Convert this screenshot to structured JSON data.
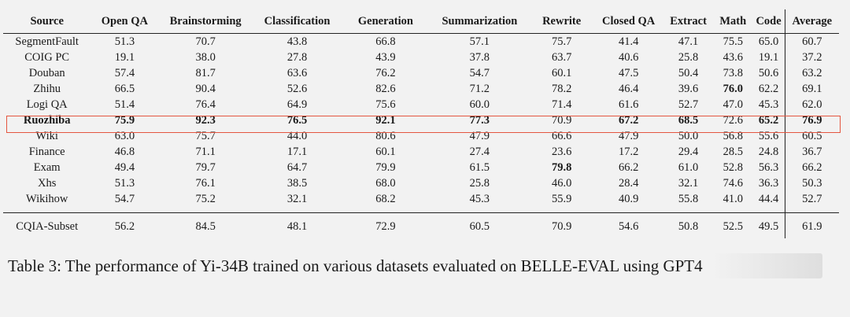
{
  "table": {
    "headers": [
      "Source",
      "Open QA",
      "Brainstorming",
      "Classification",
      "Generation",
      "Summarization",
      "Rewrite",
      "Closed QA",
      "Extract",
      "Math",
      "Code",
      "Average"
    ],
    "rows": [
      {
        "source": "SegmentFault",
        "values": [
          "51.3",
          "70.7",
          "43.8",
          "66.8",
          "57.1",
          "75.7",
          "41.4",
          "47.1",
          "75.5",
          "65.0",
          "60.7"
        ],
        "bold": []
      },
      {
        "source": "COIG PC",
        "values": [
          "19.1",
          "38.0",
          "27.8",
          "43.9",
          "37.8",
          "63.7",
          "40.6",
          "25.8",
          "43.6",
          "19.1",
          "37.2"
        ],
        "bold": []
      },
      {
        "source": "Douban",
        "values": [
          "57.4",
          "81.7",
          "63.6",
          "76.2",
          "54.7",
          "60.1",
          "47.5",
          "50.4",
          "73.8",
          "50.6",
          "63.2"
        ],
        "bold": []
      },
      {
        "source": "Zhihu",
        "values": [
          "66.5",
          "90.4",
          "52.6",
          "82.6",
          "71.2",
          "78.2",
          "46.4",
          "39.6",
          "76.0",
          "62.2",
          "69.1"
        ],
        "bold": [
          8
        ]
      },
      {
        "source": "Logi QA",
        "values": [
          "51.4",
          "76.4",
          "64.9",
          "75.6",
          "60.0",
          "71.4",
          "61.6",
          "52.7",
          "47.0",
          "45.3",
          "62.0"
        ],
        "bold": []
      },
      {
        "source": "Ruozhiba",
        "values": [
          "75.9",
          "92.3",
          "76.5",
          "92.1",
          "77.3",
          "70.9",
          "67.2",
          "68.5",
          "72.6",
          "65.2",
          "76.9"
        ],
        "bold": [
          0,
          1,
          2,
          3,
          4,
          6,
          7,
          9,
          10
        ],
        "source_bold": true
      },
      {
        "source": "Wiki",
        "values": [
          "63.0",
          "75.7",
          "44.0",
          "80.6",
          "47.9",
          "66.6",
          "47.9",
          "50.0",
          "56.8",
          "55.6",
          "60.5"
        ],
        "bold": []
      },
      {
        "source": "Finance",
        "values": [
          "46.8",
          "71.1",
          "17.1",
          "60.1",
          "27.4",
          "23.6",
          "17.2",
          "29.4",
          "28.5",
          "24.8",
          "36.7"
        ],
        "bold": []
      },
      {
        "source": "Exam",
        "values": [
          "49.4",
          "79.7",
          "64.7",
          "79.9",
          "61.5",
          "79.8",
          "66.2",
          "61.0",
          "52.8",
          "56.3",
          "66.2"
        ],
        "bold": [
          5
        ]
      },
      {
        "source": "Xhs",
        "values": [
          "51.3",
          "76.1",
          "38.5",
          "68.0",
          "25.8",
          "46.0",
          "28.4",
          "32.1",
          "74.6",
          "36.3",
          "50.3"
        ],
        "bold": []
      },
      {
        "source": "Wikihow",
        "values": [
          "54.7",
          "75.2",
          "32.1",
          "68.2",
          "45.3",
          "55.9",
          "40.9",
          "55.8",
          "41.0",
          "44.4",
          "52.7"
        ],
        "bold": []
      }
    ],
    "summary": {
      "source": "CQIA-Subset",
      "values": [
        "56.2",
        "84.5",
        "48.1",
        "72.9",
        "60.5",
        "70.9",
        "54.6",
        "50.8",
        "52.5",
        "49.5",
        "61.9"
      ]
    }
  },
  "highlight_color": "#e4553f",
  "caption": "Table 3: The performance of Yi-34B trained on various datasets evaluated on BELLE-EVAL using GPT4"
}
